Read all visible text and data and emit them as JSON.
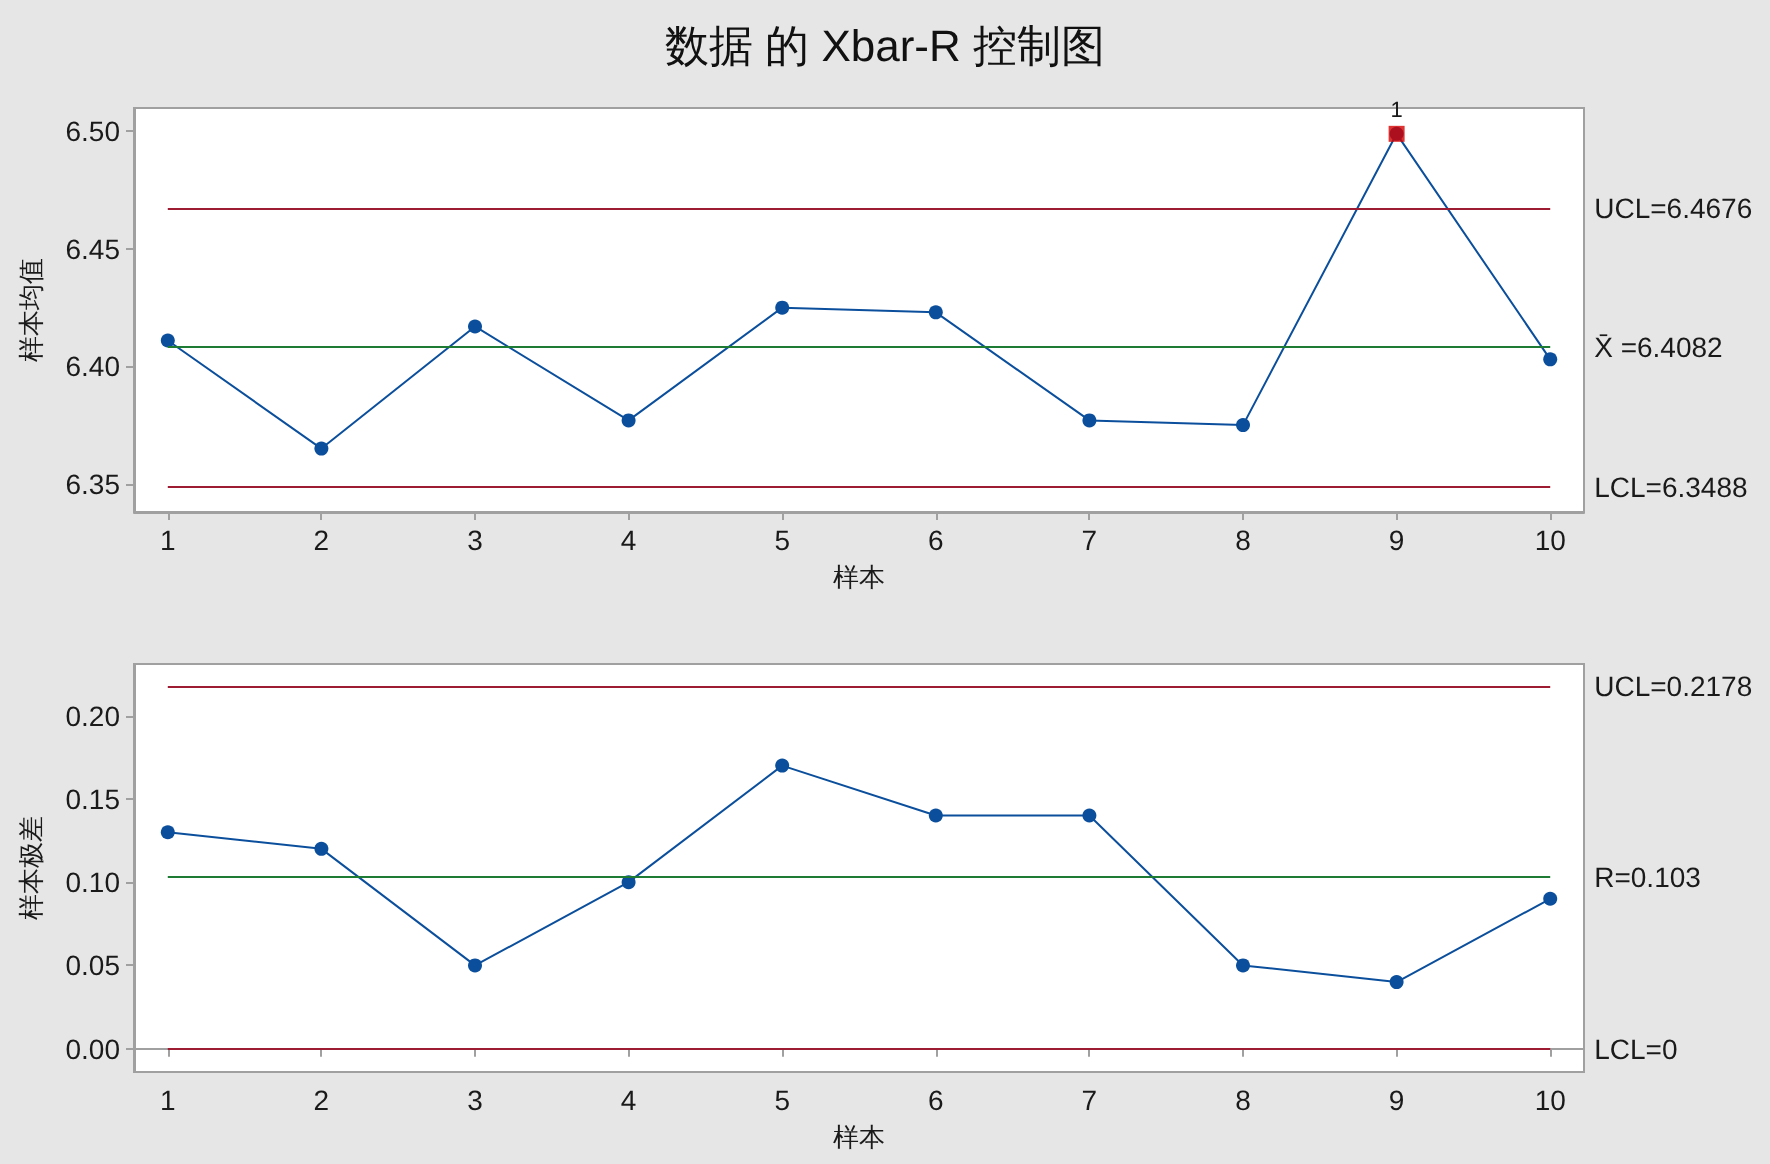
{
  "chart_data": [
    {
      "type": "line",
      "title": "数据 的 Xbar-R 控制图",
      "xlabel": "样本",
      "ylabel": "样本均值",
      "x": [
        1,
        2,
        3,
        4,
        5,
        6,
        7,
        8,
        9,
        10
      ],
      "xlim": [
        0.78,
        10.22
      ],
      "xticks": [
        1,
        2,
        3,
        4,
        5,
        6,
        7,
        8,
        9,
        10
      ],
      "ylim": [
        6.338,
        6.51
      ],
      "yticks": [
        6.35,
        {
          "value": 6.4,
          "label": "6.40"
        },
        6.45,
        {
          "value": 6.5,
          "label": "6.50"
        }
      ],
      "series": [
        {
          "color": "#0b4f9c",
          "marker": "circle",
          "values": [
            6.411,
            6.365,
            6.417,
            6.377,
            6.425,
            6.423,
            6.377,
            6.375,
            6.499,
            6.403
          ]
        },
        {
          "type": "scatter",
          "x": [
            9
          ],
          "color": "#d40000",
          "marker": "square",
          "values": [
            6.499
          ]
        }
      ],
      "ref_lines": [
        {
          "axis": "y",
          "value": 6.4676,
          "label": "UCL=6.4676",
          "color": "#9e1c32"
        },
        {
          "axis": "y",
          "value": 6.4082,
          "label": "X̄ =6.4082",
          "color": "#1e7b34"
        },
        {
          "axis": "y",
          "value": 6.3488,
          "label": "LCL=6.3488",
          "color": "#9e1c32"
        }
      ],
      "annotations": [
        {
          "text": "1",
          "x": 9,
          "y": 6.499
        }
      ]
    },
    {
      "type": "line",
      "xlabel": "样本",
      "ylabel": "样本极差",
      "x": [
        1,
        2,
        3,
        4,
        5,
        6,
        7,
        8,
        9,
        10
      ],
      "xlim": [
        0.78,
        10.22
      ],
      "xticks": [
        1,
        2,
        3,
        4,
        5,
        6,
        7,
        8,
        9,
        10
      ],
      "ylim": [
        -0.014,
        0.231
      ],
      "yticks": [
        {
          "value": 0,
          "label": "0.00"
        },
        0.05,
        {
          "value": 0.1,
          "label": "0.10"
        },
        0.15,
        {
          "value": 0.2,
          "label": "0.20"
        }
      ],
      "series": [
        {
          "color": "#0b4f9c",
          "marker": "circle",
          "values": [
            0.13,
            0.12,
            0.05,
            0.1,
            0.17,
            0.14,
            0.14,
            0.05,
            0.04,
            0.09
          ]
        }
      ],
      "ref_lines": [
        {
          "axis": "y",
          "value": 0.2178,
          "label": "UCL=0.2178",
          "color": "#9e1c32"
        },
        {
          "axis": "y",
          "value": 0.103,
          "label": "R=0.103",
          "color": "#1e7b34"
        },
        {
          "axis": "y",
          "value": 0,
          "label": "LCL=0",
          "color": "#9e1c32"
        }
      ]
    }
  ]
}
